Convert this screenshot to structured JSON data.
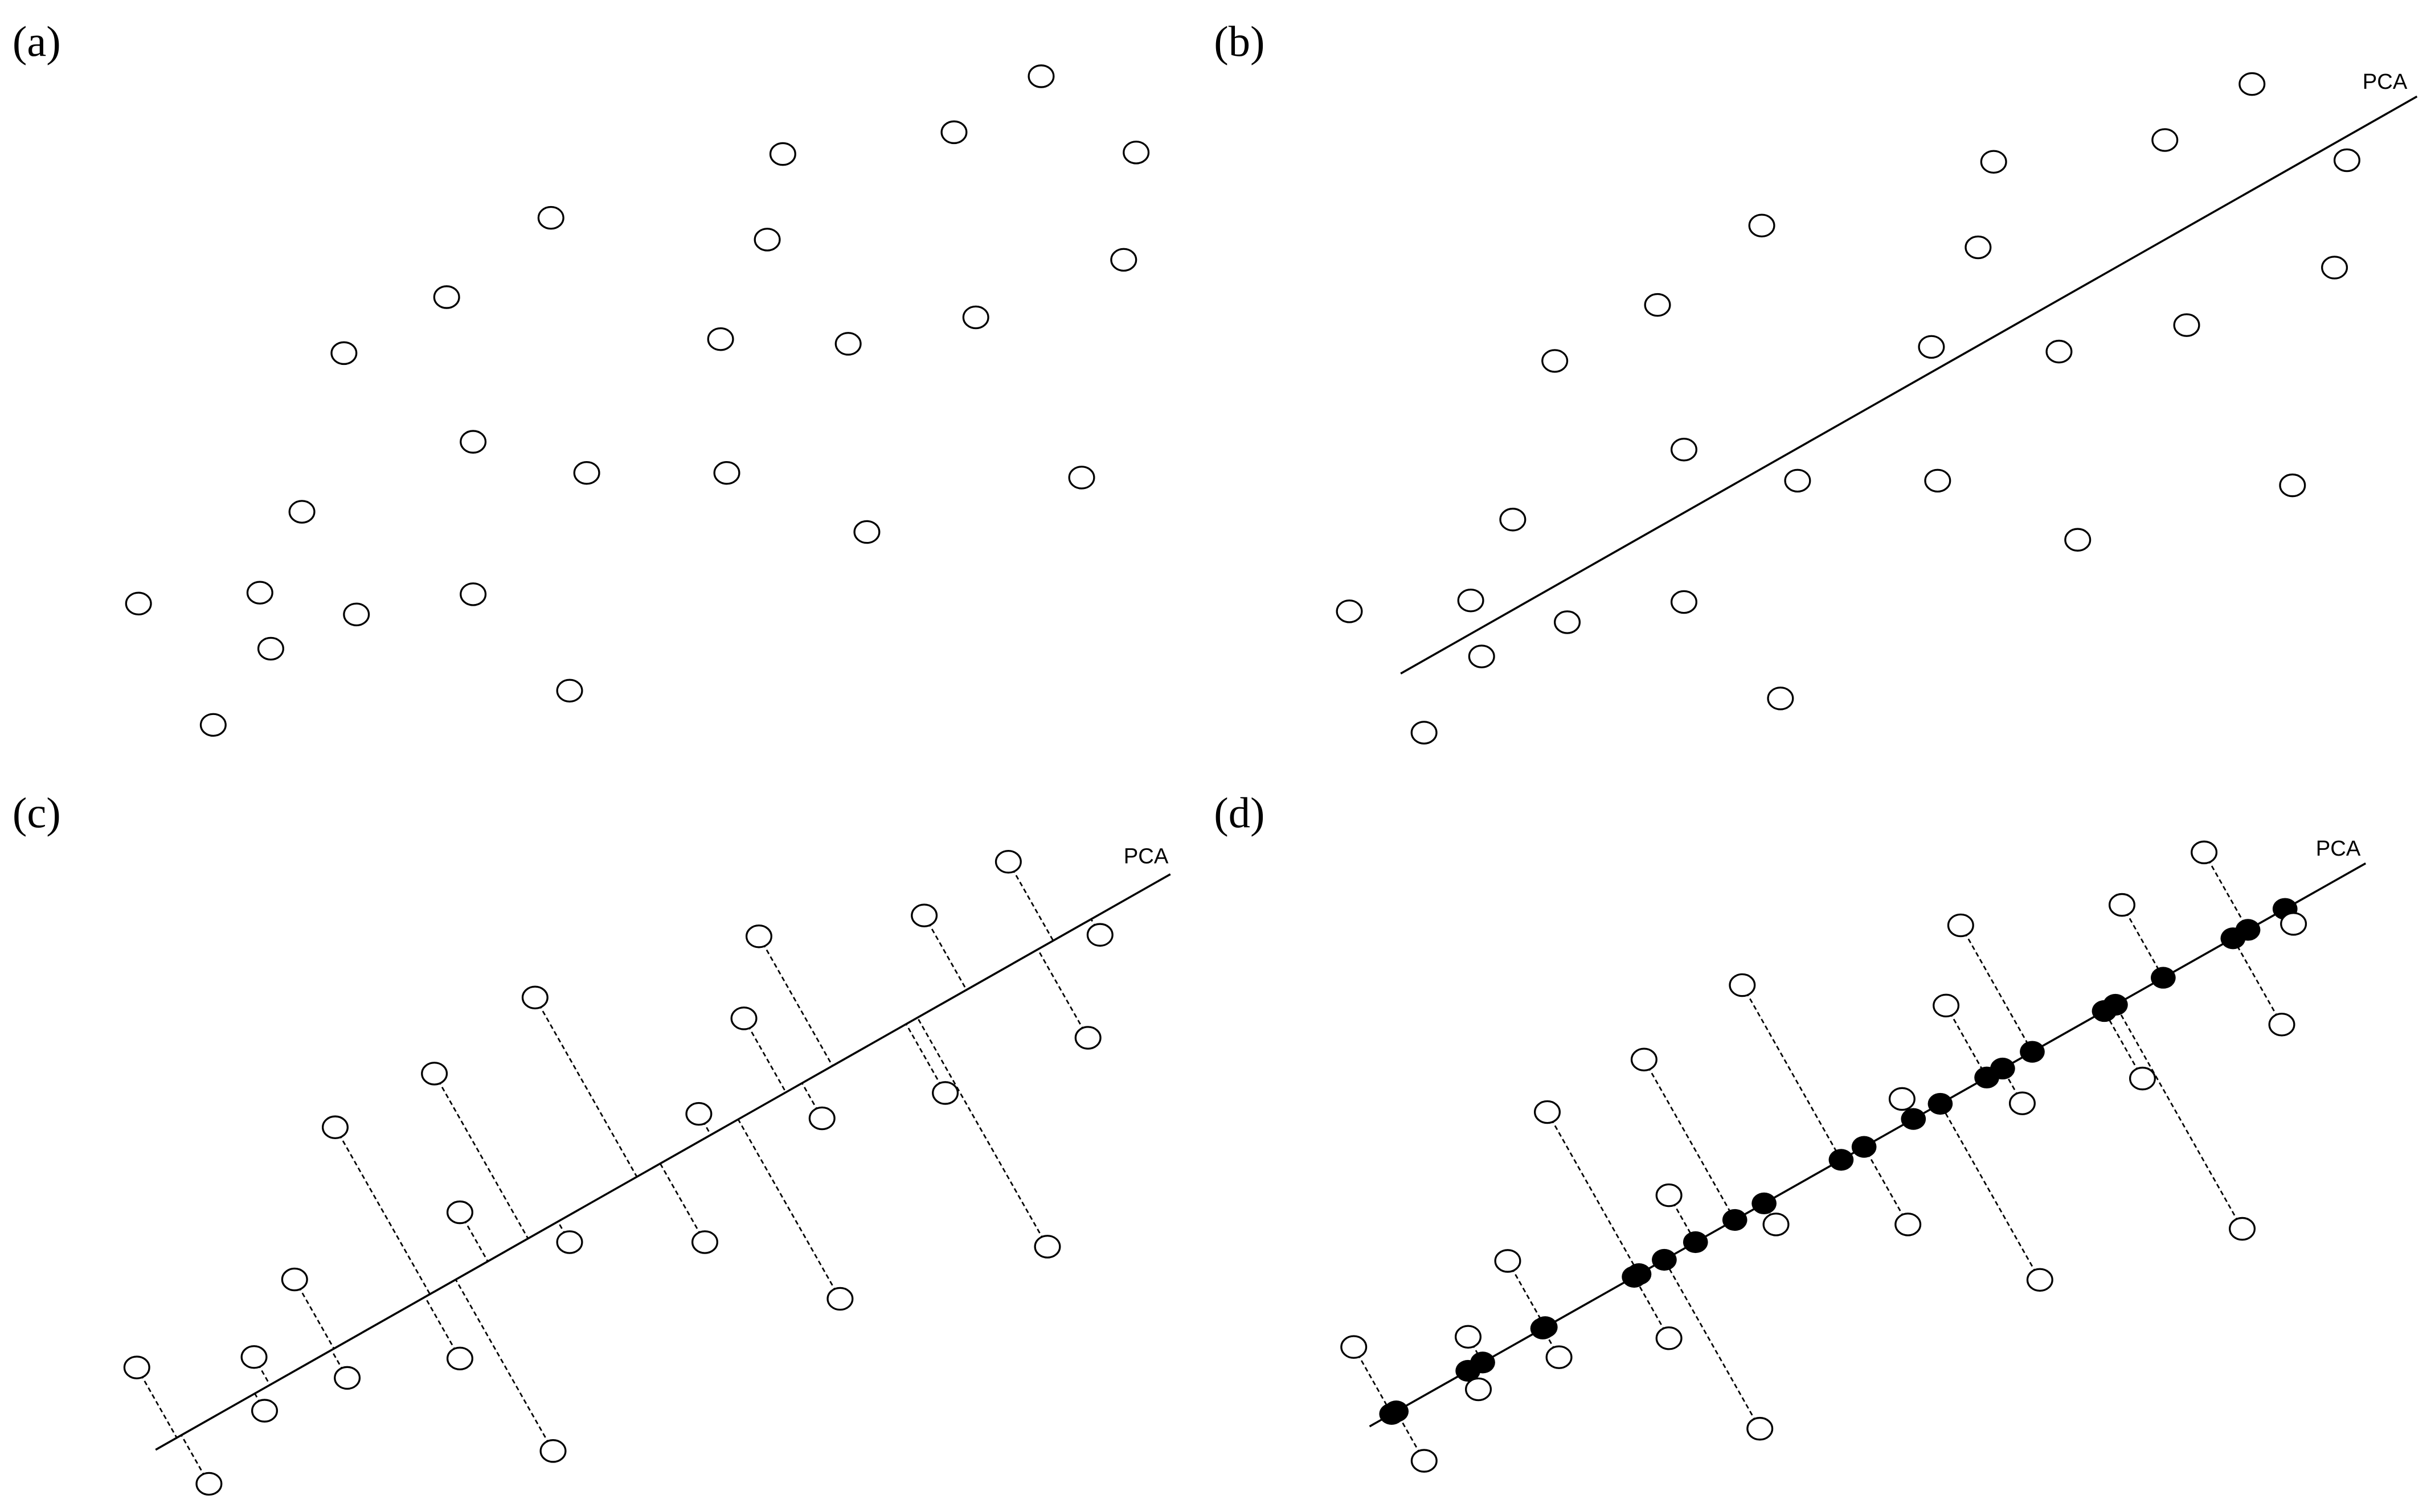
{
  "panels": [
    {
      "label": "(a)"
    },
    {
      "label": "(b)",
      "line_label": "PCA"
    },
    {
      "label": "(c)",
      "line_label": "PCA"
    },
    {
      "label": "(d)",
      "line_label": "PCA"
    }
  ]
}
